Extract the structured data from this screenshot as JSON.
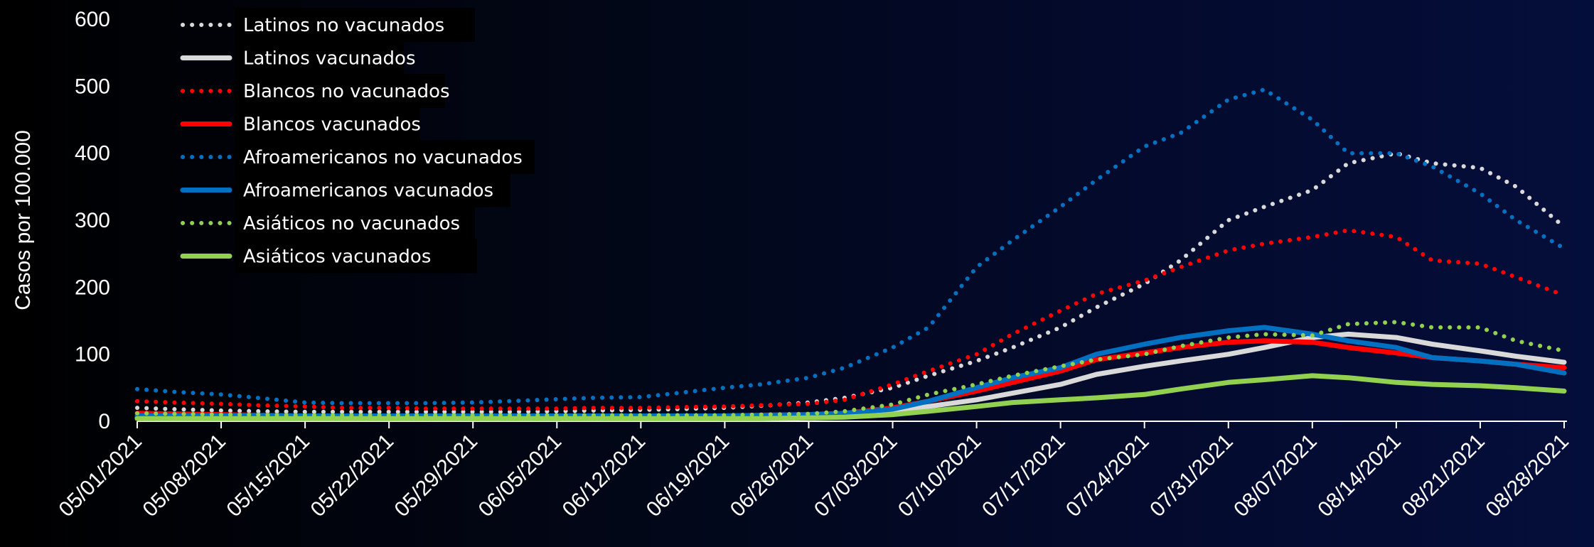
{
  "chart_data": {
    "type": "line",
    "title": "",
    "ylabel": "Casos por 100.000",
    "xlabel": "",
    "ylim": [
      0,
      600
    ],
    "yticks": [
      0,
      100,
      200,
      300,
      400,
      500,
      600
    ],
    "grid": false,
    "legend_position": "top-left",
    "x_ticks": [
      "05/01/2021",
      "05/08/2021",
      "05/15/2021",
      "05/22/2021",
      "05/29/2021",
      "06/05/2021",
      "06/12/2021",
      "06/19/2021",
      "06/26/2021",
      "07/03/2021",
      "07/10/2021",
      "07/17/2021",
      "07/24/2021",
      "07/31/2021",
      "08/07/2021",
      "08/14/2021",
      "08/21/2021",
      "08/28/2021"
    ],
    "x": [
      "05/01/2021",
      "05/04/2021",
      "05/08/2021",
      "05/11/2021",
      "05/15/2021",
      "05/18/2021",
      "05/22/2021",
      "05/25/2021",
      "05/29/2021",
      "06/01/2021",
      "06/05/2021",
      "06/08/2021",
      "06/12/2021",
      "06/15/2021",
      "06/19/2021",
      "06/22/2021",
      "06/26/2021",
      "06/29/2021",
      "07/03/2021",
      "07/06/2021",
      "07/10/2021",
      "07/13/2021",
      "07/17/2021",
      "07/20/2021",
      "07/24/2021",
      "07/27/2021",
      "07/31/2021",
      "08/03/2021",
      "08/07/2021",
      "08/10/2021",
      "08/14/2021",
      "08/17/2021",
      "08/21/2021",
      "08/24/2021",
      "08/28/2021"
    ],
    "series": [
      {
        "name": "Latinos no vacunados",
        "color": "#d9d9d9",
        "style": "dotted",
        "values": [
          20,
          18,
          16,
          15,
          14,
          14,
          14,
          14,
          14,
          14,
          15,
          16,
          17,
          18,
          20,
          23,
          28,
          35,
          50,
          68,
          90,
          110,
          140,
          170,
          205,
          240,
          300,
          320,
          345,
          385,
          400,
          385,
          378,
          350,
          290
        ]
      },
      {
        "name": "Latinos vacunados",
        "color": "#d9d9d9",
        "style": "solid",
        "values": [
          5,
          5,
          5,
          5,
          5,
          5,
          5,
          5,
          5,
          5,
          5,
          5,
          5,
          5,
          5,
          6,
          8,
          10,
          14,
          22,
          32,
          42,
          55,
          70,
          82,
          90,
          100,
          110,
          125,
          130,
          125,
          115,
          105,
          97,
          88
        ]
      },
      {
        "name": "Blancos no vacunados",
        "color": "#ff0000",
        "style": "dotted",
        "values": [
          30,
          28,
          26,
          24,
          22,
          20,
          20,
          19,
          19,
          19,
          19,
          20,
          20,
          21,
          22,
          24,
          26,
          32,
          55,
          75,
          100,
          130,
          165,
          190,
          210,
          230,
          255,
          265,
          275,
          285,
          275,
          240,
          235,
          215,
          188
        ]
      },
      {
        "name": "Blancos vacunados",
        "color": "#ff0000",
        "style": "solid",
        "values": [
          12,
          11,
          10,
          9,
          8,
          8,
          8,
          8,
          8,
          8,
          8,
          8,
          8,
          8,
          8,
          9,
          10,
          12,
          20,
          30,
          45,
          58,
          75,
          92,
          102,
          110,
          118,
          120,
          118,
          110,
          102,
          95,
          90,
          85,
          80
        ]
      },
      {
        "name": "Afroamericanos no vacunados",
        "color": "#0070c0",
        "style": "dotted",
        "values": [
          48,
          44,
          40,
          35,
          28,
          27,
          27,
          27,
          28,
          30,
          33,
          35,
          36,
          42,
          50,
          55,
          65,
          80,
          110,
          140,
          230,
          270,
          320,
          360,
          410,
          430,
          480,
          495,
          450,
          400,
          400,
          380,
          340,
          300,
          258
        ]
      },
      {
        "name": "Afroamericanos vacunados",
        "color": "#0070c0",
        "style": "solid",
        "values": [
          8,
          8,
          8,
          8,
          8,
          8,
          8,
          8,
          8,
          8,
          8,
          8,
          8,
          8,
          8,
          9,
          10,
          12,
          18,
          30,
          50,
          65,
          80,
          100,
          115,
          125,
          135,
          140,
          130,
          120,
          110,
          95,
          90,
          85,
          72
        ]
      },
      {
        "name": "Asiáticos no vacunados",
        "color": "#92d050",
        "style": "dotted",
        "values": [
          12,
          11,
          10,
          10,
          9,
          9,
          9,
          9,
          9,
          9,
          9,
          9,
          9,
          9,
          9,
          10,
          11,
          15,
          25,
          40,
          55,
          68,
          82,
          92,
          100,
          112,
          125,
          130,
          128,
          145,
          148,
          140,
          140,
          120,
          105
        ]
      },
      {
        "name": "Asiáticos vacunados",
        "color": "#92d050",
        "style": "solid",
        "values": [
          4,
          4,
          4,
          4,
          4,
          4,
          4,
          4,
          4,
          4,
          4,
          4,
          4,
          4,
          4,
          4,
          5,
          6,
          10,
          15,
          22,
          28,
          32,
          35,
          40,
          48,
          58,
          62,
          68,
          65,
          58,
          55,
          53,
          50,
          45
        ]
      }
    ]
  }
}
